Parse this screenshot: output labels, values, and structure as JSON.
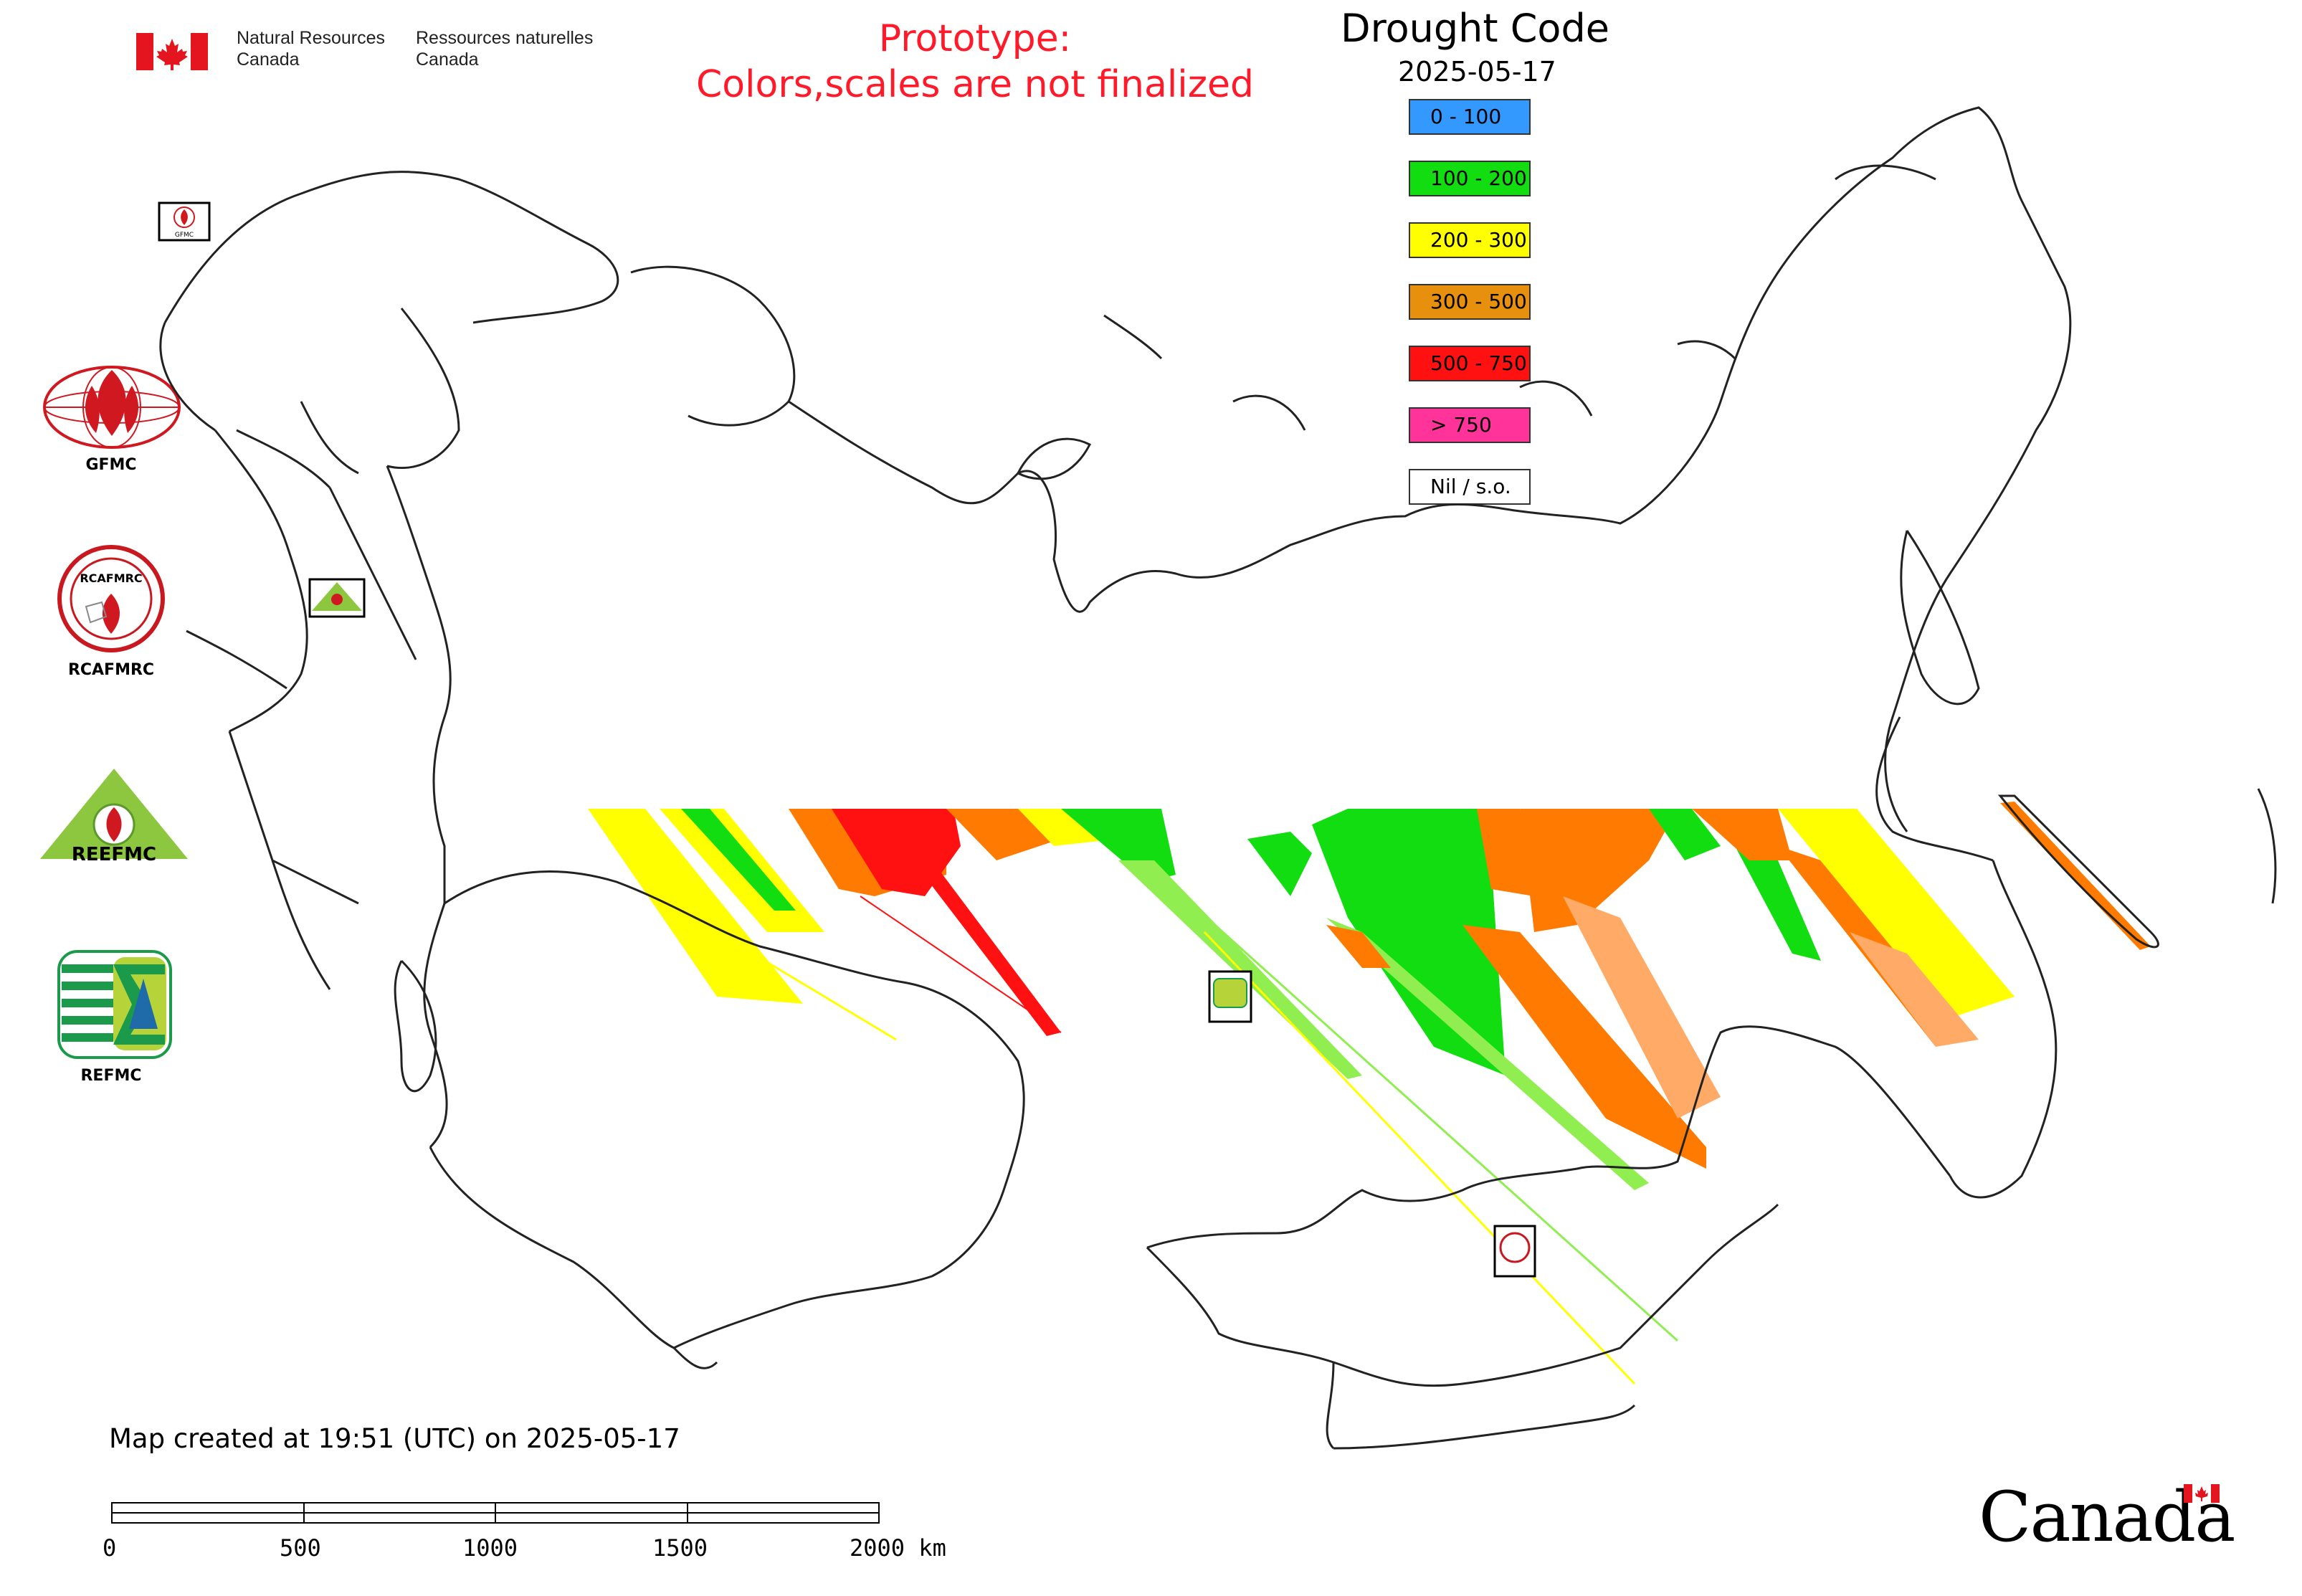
{
  "header": {
    "department_en_line1": "Natural Resources",
    "department_en_line2": "Canada",
    "department_fr_line1": "Ressources naturelles",
    "department_fr_line2": "Canada",
    "prototype_line1": "Prototype:",
    "prototype_line2": "Colors,scales are not finalized"
  },
  "legend": {
    "title": "Drought Code",
    "date": "2025-05-17",
    "items": [
      {
        "label": "0 - 100",
        "color": "#3399ff"
      },
      {
        "label": "100 - 200",
        "color": "#11dd11"
      },
      {
        "label": "200 - 300",
        "color": "#ffff00"
      },
      {
        "label": "300 - 500",
        "color": "#e6900e"
      },
      {
        "label": "500 - 750",
        "color": "#ff1111"
      },
      {
        "label": "> 750",
        "color": "#ff3399"
      },
      {
        "label": "Nil / s.o.",
        "color": "#ffffff"
      }
    ]
  },
  "organizations": [
    {
      "label": "GFMC",
      "icon": "gfmc-logo"
    },
    {
      "label": "RCAFMRC",
      "icon": "rcafmrc-logo"
    },
    {
      "label": "",
      "icon": "reefmc-logo"
    },
    {
      "label": "REFMC",
      "icon": "refmc-logo"
    }
  ],
  "logo_text": {
    "reefmc": "REEFMC",
    "rcafmrc": "RCAFMRC",
    "gfmc_small": "GFMC"
  },
  "footer": {
    "created_text": "Map created at 19:51 (UTC) on 2025-05-17",
    "wordmark": "Canada"
  },
  "scale_bar": {
    "labels": [
      "0",
      "500",
      "1000",
      "1500",
      "2000 km"
    ]
  }
}
